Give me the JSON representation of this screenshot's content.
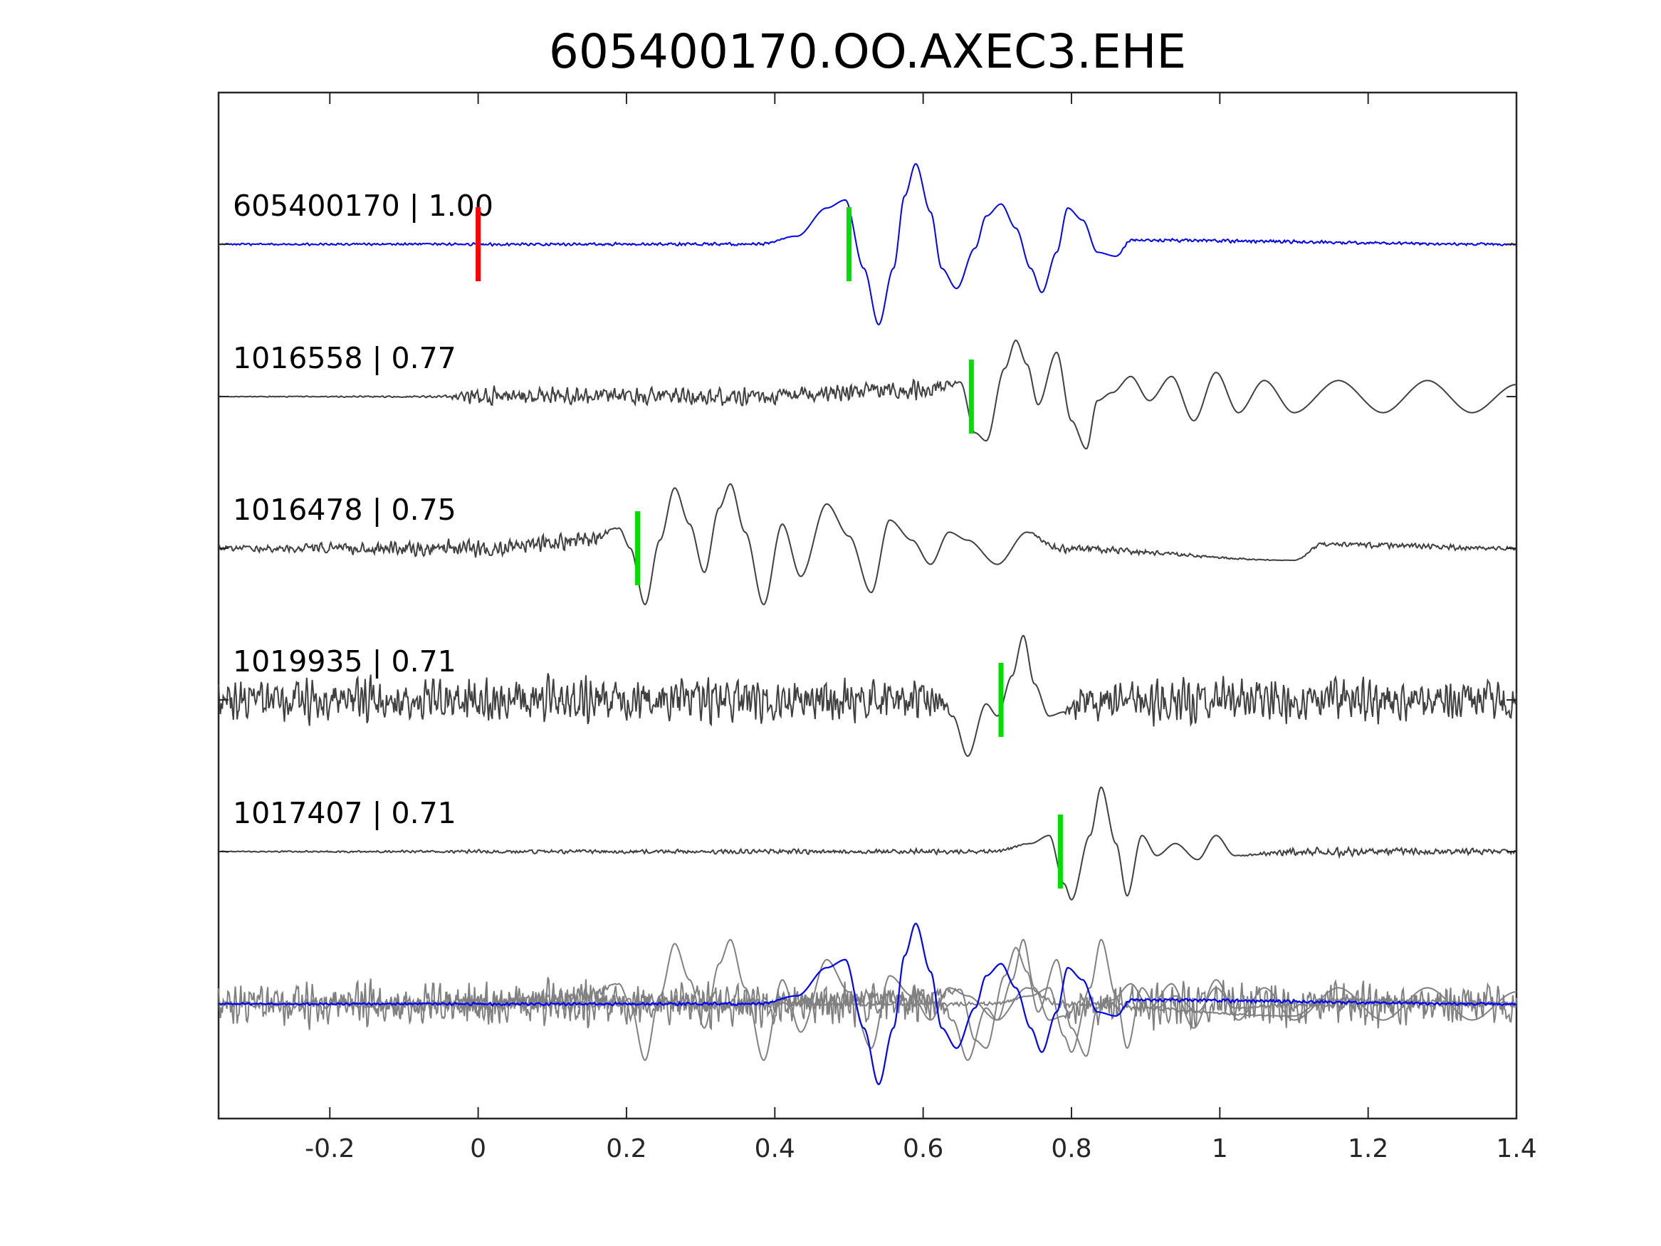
{
  "chart_data": {
    "type": "line",
    "title": "605400170.OO.AXEC3.EHE",
    "xlabel": "",
    "ylabel": "",
    "xlim": [
      -0.35,
      1.4
    ],
    "xticks": [
      -0.2,
      0,
      0.2,
      0.4,
      0.6,
      0.8,
      1,
      1.2,
      1.4
    ],
    "xtick_labels": [
      "-0.2",
      "0",
      "0.2",
      "0.4",
      "0.6",
      "0.8",
      "1",
      "1.2",
      "1.4"
    ],
    "grid": false,
    "colors": {
      "template": "#0000ff",
      "match": "#404040",
      "overlay": "#808080",
      "origin_pick": "#ff0000",
      "phase_pick": "#00dd00",
      "axes": "#262626"
    },
    "traces": [
      {
        "label": "605400170 | 1.00",
        "id": "605400170",
        "cc": 1.0,
        "role": "template",
        "pick": 0.5,
        "segments": [
          [
            -0.35,
            0.0,
            0.01
          ],
          [
            0.38,
            0.0,
            0.02
          ],
          [
            0.43,
            0.1,
            0.0
          ],
          [
            0.47,
            0.45,
            0.0
          ],
          [
            0.495,
            0.55,
            0.0
          ],
          [
            0.52,
            -0.3,
            0.0
          ],
          [
            0.54,
            -1.0,
            0.0
          ],
          [
            0.56,
            -0.3,
            0.0
          ],
          [
            0.575,
            0.6,
            0.0
          ],
          [
            0.59,
            1.0,
            0.0
          ],
          [
            0.61,
            0.4,
            0.0
          ],
          [
            0.625,
            -0.3,
            0.0
          ],
          [
            0.645,
            -0.55,
            0.0
          ],
          [
            0.67,
            -0.05,
            0.0
          ],
          [
            0.685,
            0.35,
            0.0
          ],
          [
            0.705,
            0.5,
            0.0
          ],
          [
            0.725,
            0.2,
            0.0
          ],
          [
            0.745,
            -0.3,
            0.0
          ],
          [
            0.76,
            -0.6,
            0.0
          ],
          [
            0.78,
            -0.1,
            0.0
          ],
          [
            0.795,
            0.45,
            0.0
          ],
          [
            0.815,
            0.3,
            0.0
          ],
          [
            0.835,
            -0.1,
            0.0
          ],
          [
            0.86,
            -0.15,
            0.0
          ],
          [
            0.88,
            0.05,
            0.02
          ],
          [
            1.4,
            0.0,
            0.015
          ]
        ]
      },
      {
        "label": "1016558 | 0.77",
        "id": "1016558",
        "cc": 0.77,
        "role": "match",
        "pick": 0.665,
        "segments": [
          [
            -0.35,
            0.0,
            0.005
          ],
          [
            -0.05,
            0.0,
            0.01
          ],
          [
            0.0,
            0.0,
            0.1
          ],
          [
            0.4,
            0.0,
            0.1
          ],
          [
            0.62,
            0.1,
            0.12
          ],
          [
            0.65,
            0.18,
            0.0
          ],
          [
            0.67,
            -0.45,
            0.0
          ],
          [
            0.685,
            -0.55,
            0.0
          ],
          [
            0.71,
            0.35,
            0.0
          ],
          [
            0.725,
            0.7,
            0.0
          ],
          [
            0.74,
            0.4,
            0.0
          ],
          [
            0.755,
            -0.1,
            0.0
          ],
          [
            0.78,
            0.55,
            0.0
          ],
          [
            0.8,
            -0.3,
            0.0
          ],
          [
            0.82,
            -0.65,
            0.0
          ],
          [
            0.835,
            -0.05,
            0.0
          ],
          [
            0.855,
            0.05,
            0.0
          ],
          [
            0.88,
            0.25,
            0.0
          ],
          [
            0.905,
            -0.05,
            0.0
          ],
          [
            0.935,
            0.25,
            0.0
          ],
          [
            0.965,
            -0.3,
            0.0
          ],
          [
            0.995,
            0.3,
            0.0
          ],
          [
            1.025,
            -0.2,
            0.0
          ],
          [
            1.06,
            0.2,
            0.0
          ],
          [
            1.1,
            -0.2,
            0.0
          ],
          [
            1.16,
            0.2,
            0.0
          ],
          [
            1.22,
            -0.2,
            0.0
          ],
          [
            1.28,
            0.2,
            0.0
          ],
          [
            1.34,
            -0.2,
            0.0
          ],
          [
            1.4,
            0.15,
            0.0
          ]
        ]
      },
      {
        "label": "1016478 | 0.75",
        "id": "1016478",
        "cc": 0.75,
        "role": "match",
        "pick": 0.215,
        "segments": [
          [
            -0.35,
            0.0,
            0.03
          ],
          [
            0.0,
            0.0,
            0.1
          ],
          [
            0.15,
            0.1,
            0.1
          ],
          [
            0.19,
            0.25,
            0.0
          ],
          [
            0.205,
            0.0,
            0.0
          ],
          [
            0.225,
            -0.7,
            0.0
          ],
          [
            0.245,
            0.1,
            0.0
          ],
          [
            0.265,
            0.75,
            0.0
          ],
          [
            0.285,
            0.3,
            0.0
          ],
          [
            0.305,
            -0.3,
            0.0
          ],
          [
            0.325,
            0.5,
            0.0
          ],
          [
            0.34,
            0.8,
            0.0
          ],
          [
            0.36,
            0.2,
            0.0
          ],
          [
            0.385,
            -0.7,
            0.0
          ],
          [
            0.41,
            0.3,
            0.0
          ],
          [
            0.435,
            -0.35,
            0.0
          ],
          [
            0.47,
            0.55,
            0.0
          ],
          [
            0.5,
            0.15,
            0.0
          ],
          [
            0.53,
            -0.55,
            0.0
          ],
          [
            0.555,
            0.35,
            0.0
          ],
          [
            0.585,
            0.1,
            0.0
          ],
          [
            0.61,
            -0.2,
            0.0
          ],
          [
            0.635,
            0.2,
            0.0
          ],
          [
            0.66,
            0.1,
            0.0
          ],
          [
            0.7,
            -0.2,
            0.0
          ],
          [
            0.74,
            0.2,
            0.0
          ],
          [
            0.78,
            0.0,
            0.05
          ],
          [
            1.1,
            -0.15,
            0.0
          ],
          [
            1.14,
            0.05,
            0.03
          ],
          [
            1.4,
            0.0,
            0.03
          ]
        ]
      },
      {
        "label": "1019935 | 0.71",
        "id": "1019935",
        "cc": 0.71,
        "role": "match",
        "pick": 0.705,
        "segments": [
          [
            -0.35,
            0.0,
            0.25
          ],
          [
            0.62,
            0.0,
            0.25
          ],
          [
            0.64,
            -0.2,
            0.0
          ],
          [
            0.66,
            -0.7,
            0.0
          ],
          [
            0.685,
            -0.05,
            0.0
          ],
          [
            0.7,
            -0.2,
            0.0
          ],
          [
            0.72,
            0.3,
            0.0
          ],
          [
            0.735,
            0.8,
            0.0
          ],
          [
            0.75,
            0.2,
            0.0
          ],
          [
            0.77,
            -0.2,
            0.0
          ],
          [
            0.79,
            -0.15,
            0.0
          ],
          [
            0.81,
            0.0,
            0.25
          ],
          [
            1.4,
            0.0,
            0.25
          ]
        ]
      },
      {
        "label": "1017407 | 0.71",
        "id": "1017407",
        "cc": 0.71,
        "role": "match",
        "pick": 0.785,
        "segments": [
          [
            -0.35,
            0.0,
            0.005
          ],
          [
            0.0,
            0.0,
            0.02
          ],
          [
            0.7,
            0.0,
            0.03
          ],
          [
            0.745,
            0.1,
            0.0
          ],
          [
            0.77,
            0.2,
            0.0
          ],
          [
            0.79,
            -0.4,
            0.0
          ],
          [
            0.8,
            -0.6,
            0.0
          ],
          [
            0.825,
            0.2,
            0.0
          ],
          [
            0.84,
            0.8,
            0.0
          ],
          [
            0.86,
            0.1,
            0.0
          ],
          [
            0.875,
            -0.55,
            0.0
          ],
          [
            0.895,
            0.2,
            0.0
          ],
          [
            0.915,
            -0.05,
            0.0
          ],
          [
            0.94,
            0.1,
            0.0
          ],
          [
            0.97,
            -0.1,
            0.0
          ],
          [
            0.995,
            0.2,
            0.0
          ],
          [
            1.02,
            -0.05,
            0.0
          ],
          [
            1.1,
            0.0,
            0.05
          ],
          [
            1.4,
            0.0,
            0.03
          ]
        ]
      }
    ]
  }
}
